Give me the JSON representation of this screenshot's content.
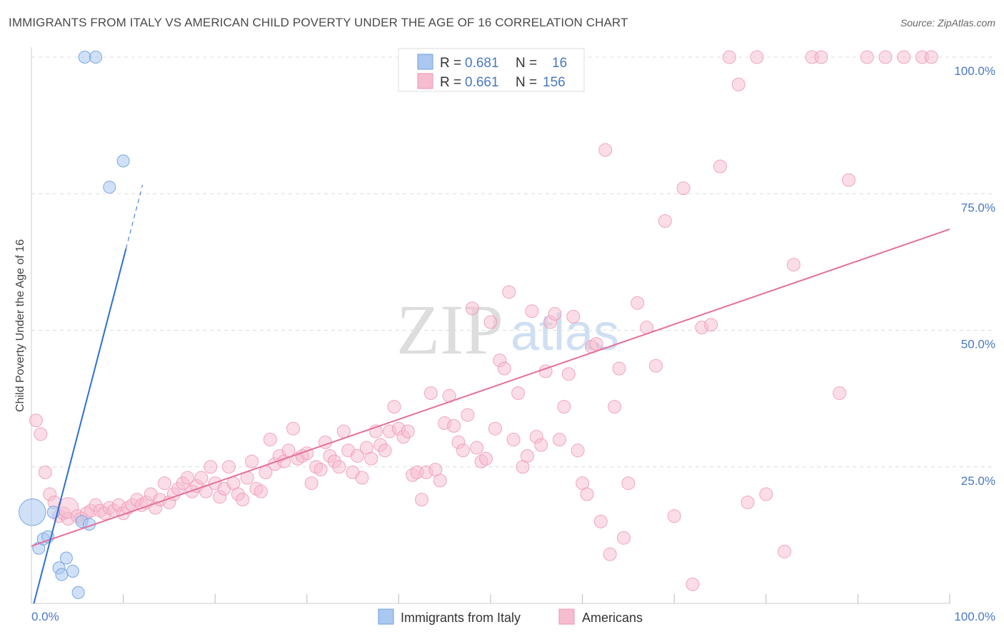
{
  "header": {
    "title": "IMMIGRANTS FROM ITALY VS AMERICAN CHILD POVERTY UNDER THE AGE OF 16 CORRELATION CHART",
    "source": "Source: ZipAtlas.com"
  },
  "colors": {
    "italy_fill": "#aac8f0",
    "italy_stroke": "#6f9fe0",
    "italy_line": "#2f6fd0",
    "americans_fill": "#f6bcd0",
    "americans_stroke": "#ee93b2",
    "americans_line": "#e4709a",
    "tick_text": "#4a78c4"
  },
  "watermark": {
    "zip": "ZIP",
    "atlas": "atlas"
  },
  "chart_data": {
    "type": "scatter",
    "title": "IMMIGRANTS FROM ITALY VS AMERICAN CHILD POVERTY UNDER THE AGE OF 16 CORRELATION CHART",
    "xlabel": "",
    "ylabel": "Child Poverty Under the Age of 16",
    "xlim": [
      0,
      100
    ],
    "ylim": [
      0,
      100
    ],
    "x_tick_labels": [
      "0.0%",
      "100.0%"
    ],
    "y_ticks": [
      25,
      50,
      75,
      100
    ],
    "y_tick_labels": [
      "25.0%",
      "50.0%",
      "75.0%",
      "100.0%"
    ],
    "grid": true,
    "legend_top": [
      {
        "r_label": "R =",
        "r_value": "0.681",
        "n_label": "N =",
        "n_value": "16"
      },
      {
        "r_label": "R =",
        "r_value": "0.661",
        "n_label": "N =",
        "n_value": "156"
      }
    ],
    "series": [
      {
        "name": "Immigrants from Italy",
        "trend": {
          "intercept": -1.7,
          "slope": 6.47,
          "solid_x_max": 10.3,
          "dashed_x_max": 12.1
        },
        "points": [
          [
            0.1,
            16.7,
            2.2
          ],
          [
            0.8,
            10.1,
            1
          ],
          [
            1.3,
            11.8,
            1
          ],
          [
            1.8,
            12.2,
            1
          ],
          [
            2.4,
            16.7,
            1
          ],
          [
            3.0,
            6.5,
            1
          ],
          [
            3.3,
            5.3,
            1
          ],
          [
            3.8,
            8.3,
            1
          ],
          [
            4.5,
            5.9,
            1
          ],
          [
            5.1,
            2.0,
            1
          ],
          [
            5.5,
            15.0,
            1
          ],
          [
            6.3,
            14.5,
            1
          ],
          [
            5.8,
            100.0,
            1
          ],
          [
            7.0,
            100.0,
            1
          ],
          [
            8.5,
            76.2,
            1
          ],
          [
            10.0,
            81.0,
            1
          ]
        ]
      },
      {
        "name": "Americans",
        "trend": {
          "intercept": 10.5,
          "slope": 0.58,
          "x_min": 0,
          "x_max": 100
        },
        "points": [
          [
            0.5,
            33.5,
            1
          ],
          [
            1,
            31,
            1
          ],
          [
            1.5,
            24,
            1
          ],
          [
            2,
            20,
            1
          ],
          [
            2.5,
            18.5,
            1
          ],
          [
            3,
            16,
            1
          ],
          [
            3.5,
            16.5,
            1
          ],
          [
            4,
            15.5,
            1
          ],
          [
            4,
            17.5,
            1.6
          ],
          [
            5,
            16,
            1
          ],
          [
            5.5,
            15.5,
            1
          ],
          [
            6,
            16.5,
            1
          ],
          [
            6.5,
            17,
            1
          ],
          [
            7,
            18,
            1
          ],
          [
            7.5,
            17,
            1
          ],
          [
            8,
            16.5,
            1
          ],
          [
            8.5,
            17.5,
            1
          ],
          [
            9,
            17,
            1
          ],
          [
            9.5,
            18,
            1
          ],
          [
            10,
            16.5,
            1
          ],
          [
            10.5,
            17.5,
            1
          ],
          [
            11,
            18,
            1
          ],
          [
            11.5,
            19,
            1
          ],
          [
            12,
            18,
            1
          ],
          [
            12.5,
            18.5,
            1
          ],
          [
            13,
            20,
            1
          ],
          [
            13.5,
            17.5,
            1
          ],
          [
            14,
            19,
            1
          ],
          [
            14.5,
            22,
            1
          ],
          [
            15,
            18.5,
            1
          ],
          [
            15.5,
            20,
            1
          ],
          [
            16,
            21,
            1
          ],
          [
            16.5,
            22,
            1
          ],
          [
            17,
            23,
            1
          ],
          [
            17.5,
            20.5,
            1
          ],
          [
            18,
            21.5,
            1
          ],
          [
            18.5,
            23,
            1
          ],
          [
            19,
            20.5,
            1
          ],
          [
            19.5,
            25,
            1
          ],
          [
            20,
            22,
            1
          ],
          [
            20.5,
            19.5,
            1
          ],
          [
            21,
            21,
            1
          ],
          [
            21.5,
            25,
            1
          ],
          [
            22,
            22,
            1
          ],
          [
            22.5,
            20,
            1
          ],
          [
            23,
            19,
            1
          ],
          [
            23.5,
            23,
            1
          ],
          [
            24,
            26,
            1
          ],
          [
            24.5,
            21,
            1
          ],
          [
            25,
            20.5,
            1
          ],
          [
            25.5,
            24,
            1
          ],
          [
            26,
            30,
            1
          ],
          [
            26.5,
            25.5,
            1
          ],
          [
            27,
            27,
            1
          ],
          [
            27.5,
            26,
            1
          ],
          [
            28,
            28,
            1
          ],
          [
            28.5,
            32,
            1
          ],
          [
            29,
            26.5,
            1
          ],
          [
            29.5,
            27,
            1
          ],
          [
            30,
            27.5,
            1
          ],
          [
            30.5,
            22,
            1
          ],
          [
            31,
            25,
            1
          ],
          [
            31.5,
            24.5,
            1
          ],
          [
            32,
            29.5,
            1
          ],
          [
            32.5,
            27,
            1
          ],
          [
            33,
            26,
            1
          ],
          [
            33.5,
            25,
            1
          ],
          [
            34,
            31.5,
            1
          ],
          [
            34.5,
            28,
            1
          ],
          [
            35,
            24,
            1
          ],
          [
            35.5,
            27,
            1
          ],
          [
            36,
            23,
            1
          ],
          [
            36.5,
            28.5,
            1
          ],
          [
            37,
            26.5,
            1
          ],
          [
            37.5,
            31.5,
            1
          ],
          [
            38,
            29,
            1
          ],
          [
            38.5,
            28,
            1
          ],
          [
            39,
            31.5,
            1
          ],
          [
            39.5,
            36,
            1
          ],
          [
            40,
            32,
            1
          ],
          [
            40.5,
            30.5,
            1
          ],
          [
            41,
            31.5,
            1
          ],
          [
            41.5,
            23.5,
            1
          ],
          [
            42,
            24,
            1
          ],
          [
            42.5,
            19,
            1
          ],
          [
            43,
            24,
            1
          ],
          [
            43.5,
            38.5,
            1
          ],
          [
            44,
            24.5,
            1
          ],
          [
            44.5,
            22.5,
            1
          ],
          [
            45,
            33,
            1
          ],
          [
            45.5,
            38,
            1
          ],
          [
            46,
            32.5,
            1
          ],
          [
            46.5,
            29.5,
            1
          ],
          [
            47,
            28,
            1
          ],
          [
            47.5,
            34.5,
            1
          ],
          [
            48,
            54,
            1
          ],
          [
            48.5,
            28.5,
            1
          ],
          [
            49,
            26,
            1
          ],
          [
            49.5,
            26.5,
            1
          ],
          [
            50,
            51.5,
            1
          ],
          [
            50.5,
            32,
            1
          ],
          [
            51,
            44.5,
            1
          ],
          [
            51.5,
            43,
            1
          ],
          [
            52,
            57,
            1
          ],
          [
            52.5,
            30,
            1
          ],
          [
            53,
            38.5,
            1
          ],
          [
            53.5,
            25,
            1
          ],
          [
            54,
            27,
            1
          ],
          [
            54.5,
            53.5,
            1
          ],
          [
            55,
            30.5,
            1
          ],
          [
            55.5,
            29,
            1
          ],
          [
            56,
            42.5,
            1
          ],
          [
            56.5,
            51.5,
            1
          ],
          [
            57,
            53,
            1
          ],
          [
            57.5,
            30,
            1
          ],
          [
            58,
            36,
            1
          ],
          [
            58.5,
            42,
            1
          ],
          [
            59,
            52.5,
            1
          ],
          [
            59.5,
            28,
            1
          ],
          [
            60,
            22,
            1
          ],
          [
            60.5,
            20,
            1
          ],
          [
            61,
            47,
            1
          ],
          [
            61.5,
            47.5,
            1
          ],
          [
            62,
            15,
            1
          ],
          [
            62.5,
            83,
            1
          ],
          [
            63,
            9,
            1
          ],
          [
            63.5,
            36,
            1
          ],
          [
            64,
            43,
            1
          ],
          [
            64.5,
            12,
            1
          ],
          [
            65,
            22,
            1
          ],
          [
            66,
            55,
            1
          ],
          [
            67,
            50.5,
            1
          ],
          [
            68,
            43.5,
            1
          ],
          [
            69,
            70,
            1
          ],
          [
            70,
            16,
            1
          ],
          [
            71,
            76,
            1
          ],
          [
            72,
            3.5,
            1
          ],
          [
            73,
            50.5,
            1
          ],
          [
            74,
            51,
            1
          ],
          [
            75,
            80,
            1
          ],
          [
            76,
            100,
            1
          ],
          [
            77,
            95,
            1
          ],
          [
            78,
            18.5,
            1
          ],
          [
            79,
            100,
            1
          ],
          [
            80,
            20,
            1
          ],
          [
            82,
            9.5,
            1
          ],
          [
            83,
            62,
            1
          ],
          [
            85,
            100,
            1
          ],
          [
            86,
            100,
            1
          ],
          [
            88,
            38.5,
            1
          ],
          [
            89,
            77.5,
            1
          ],
          [
            91,
            100,
            1
          ],
          [
            93,
            100,
            1
          ],
          [
            95,
            100,
            1
          ],
          [
            97,
            100,
            1
          ],
          [
            98,
            100,
            1
          ]
        ]
      }
    ],
    "legend_bottom": [
      "Immigrants from Italy",
      "Americans"
    ]
  }
}
